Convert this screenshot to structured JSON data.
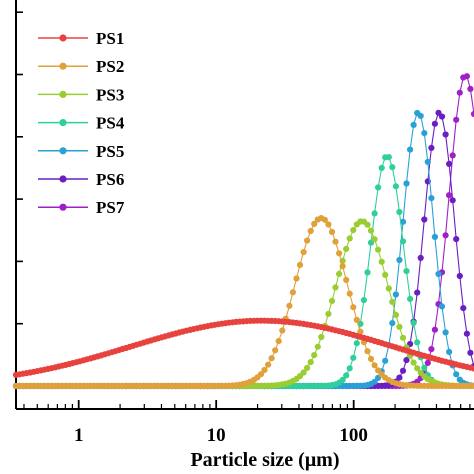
{
  "chart_data": {
    "type": "line",
    "title": "",
    "xlabel": "Particle size (μm)",
    "ylabel": "",
    "xscale": "log",
    "xlim": [
      0.35,
      750
    ],
    "ylim": [
      0,
      5
    ],
    "x_ticks": [
      1,
      10,
      100
    ],
    "x_tick_labels": [
      "1",
      "10",
      "100"
    ],
    "grid": false,
    "legend_placement": "top-left",
    "series": [
      {
        "name": "PS1",
        "color": "#e8423f",
        "mode": 21.5,
        "sigma": 0.95,
        "peak": 1.05
      },
      {
        "name": "PS2",
        "color": "#e0a13a",
        "mode": 58,
        "sigma": 0.19,
        "peak": 2.7
      },
      {
        "name": "PS3",
        "color": "#9acd32",
        "mode": 115,
        "sigma": 0.19,
        "peak": 2.65
      },
      {
        "name": "PS4",
        "color": "#2ecf9a",
        "mode": 175,
        "sigma": 0.12,
        "peak": 3.7
      },
      {
        "name": "PS5",
        "color": "#2aa1d6",
        "mode": 295,
        "sigma": 0.11,
        "peak": 4.4
      },
      {
        "name": "PS6",
        "color": "#6a1fc2",
        "mode": 420,
        "sigma": 0.11,
        "peak": 4.4
      },
      {
        "name": "PS7",
        "color": "#a020c8",
        "mode": 650,
        "sigma": 0.12,
        "peak": 5.0
      }
    ]
  }
}
